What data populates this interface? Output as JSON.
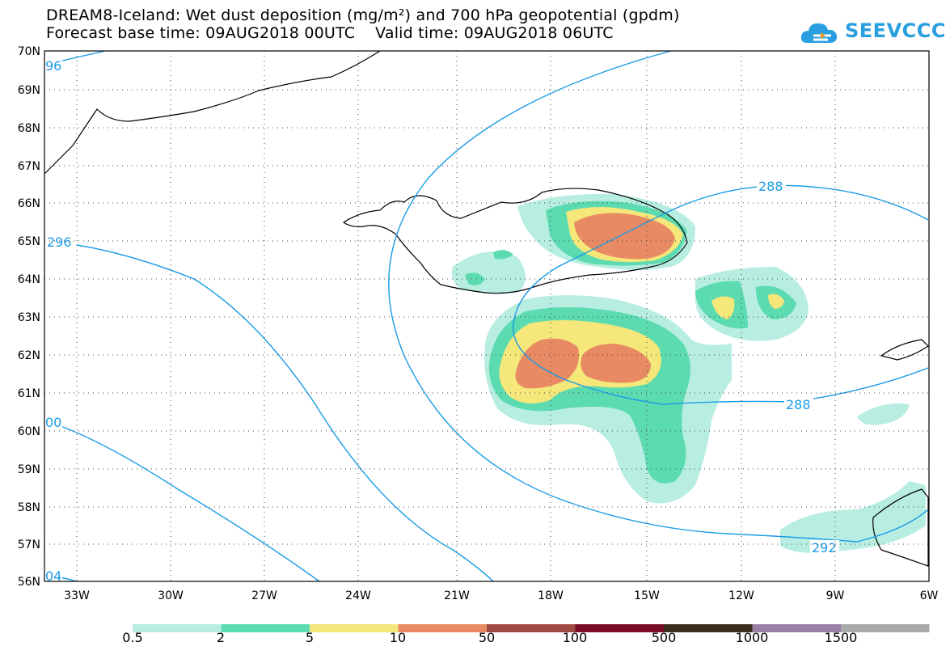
{
  "header": {
    "title_line1": "DREAM8-Iceland: Wet dust deposition (mg/m²) and 700 hPa geopotential (gpdm)",
    "title_line2": "Forecast base time: 09AUG2018 00UTC    Valid time: 09AUG2018 06UTC"
  },
  "logo": {
    "text": "SEEVCCC",
    "icon": "cloud-icon",
    "color": "#2a9fe0"
  },
  "map": {
    "lat_labels": [
      "70N",
      "69N",
      "68N",
      "67N",
      "66N",
      "65N",
      "64N",
      "63N",
      "62N",
      "61N",
      "60N",
      "59N",
      "58N",
      "57N",
      "56N"
    ],
    "lon_labels": [
      "33W",
      "30W",
      "27W",
      "24W",
      "21W",
      "18W",
      "15W",
      "12W",
      "9W",
      "6W"
    ],
    "contour_labels": [
      "96",
      "296",
      "00",
      "04",
      "288",
      "288",
      "292"
    ],
    "contour_color": "#1a9be6"
  },
  "legend": {
    "labels": [
      "0.5",
      "2",
      "5",
      "10",
      "50",
      "100",
      "500",
      "1000",
      "1500"
    ],
    "colors": [
      "#b8eee2",
      "#5ddbb0",
      "#f5e77a",
      "#e88a63",
      "#a04a44",
      "#7b0d2a",
      "#3a2f20",
      "#9a7fa6",
      "#a9a9a9"
    ]
  }
}
